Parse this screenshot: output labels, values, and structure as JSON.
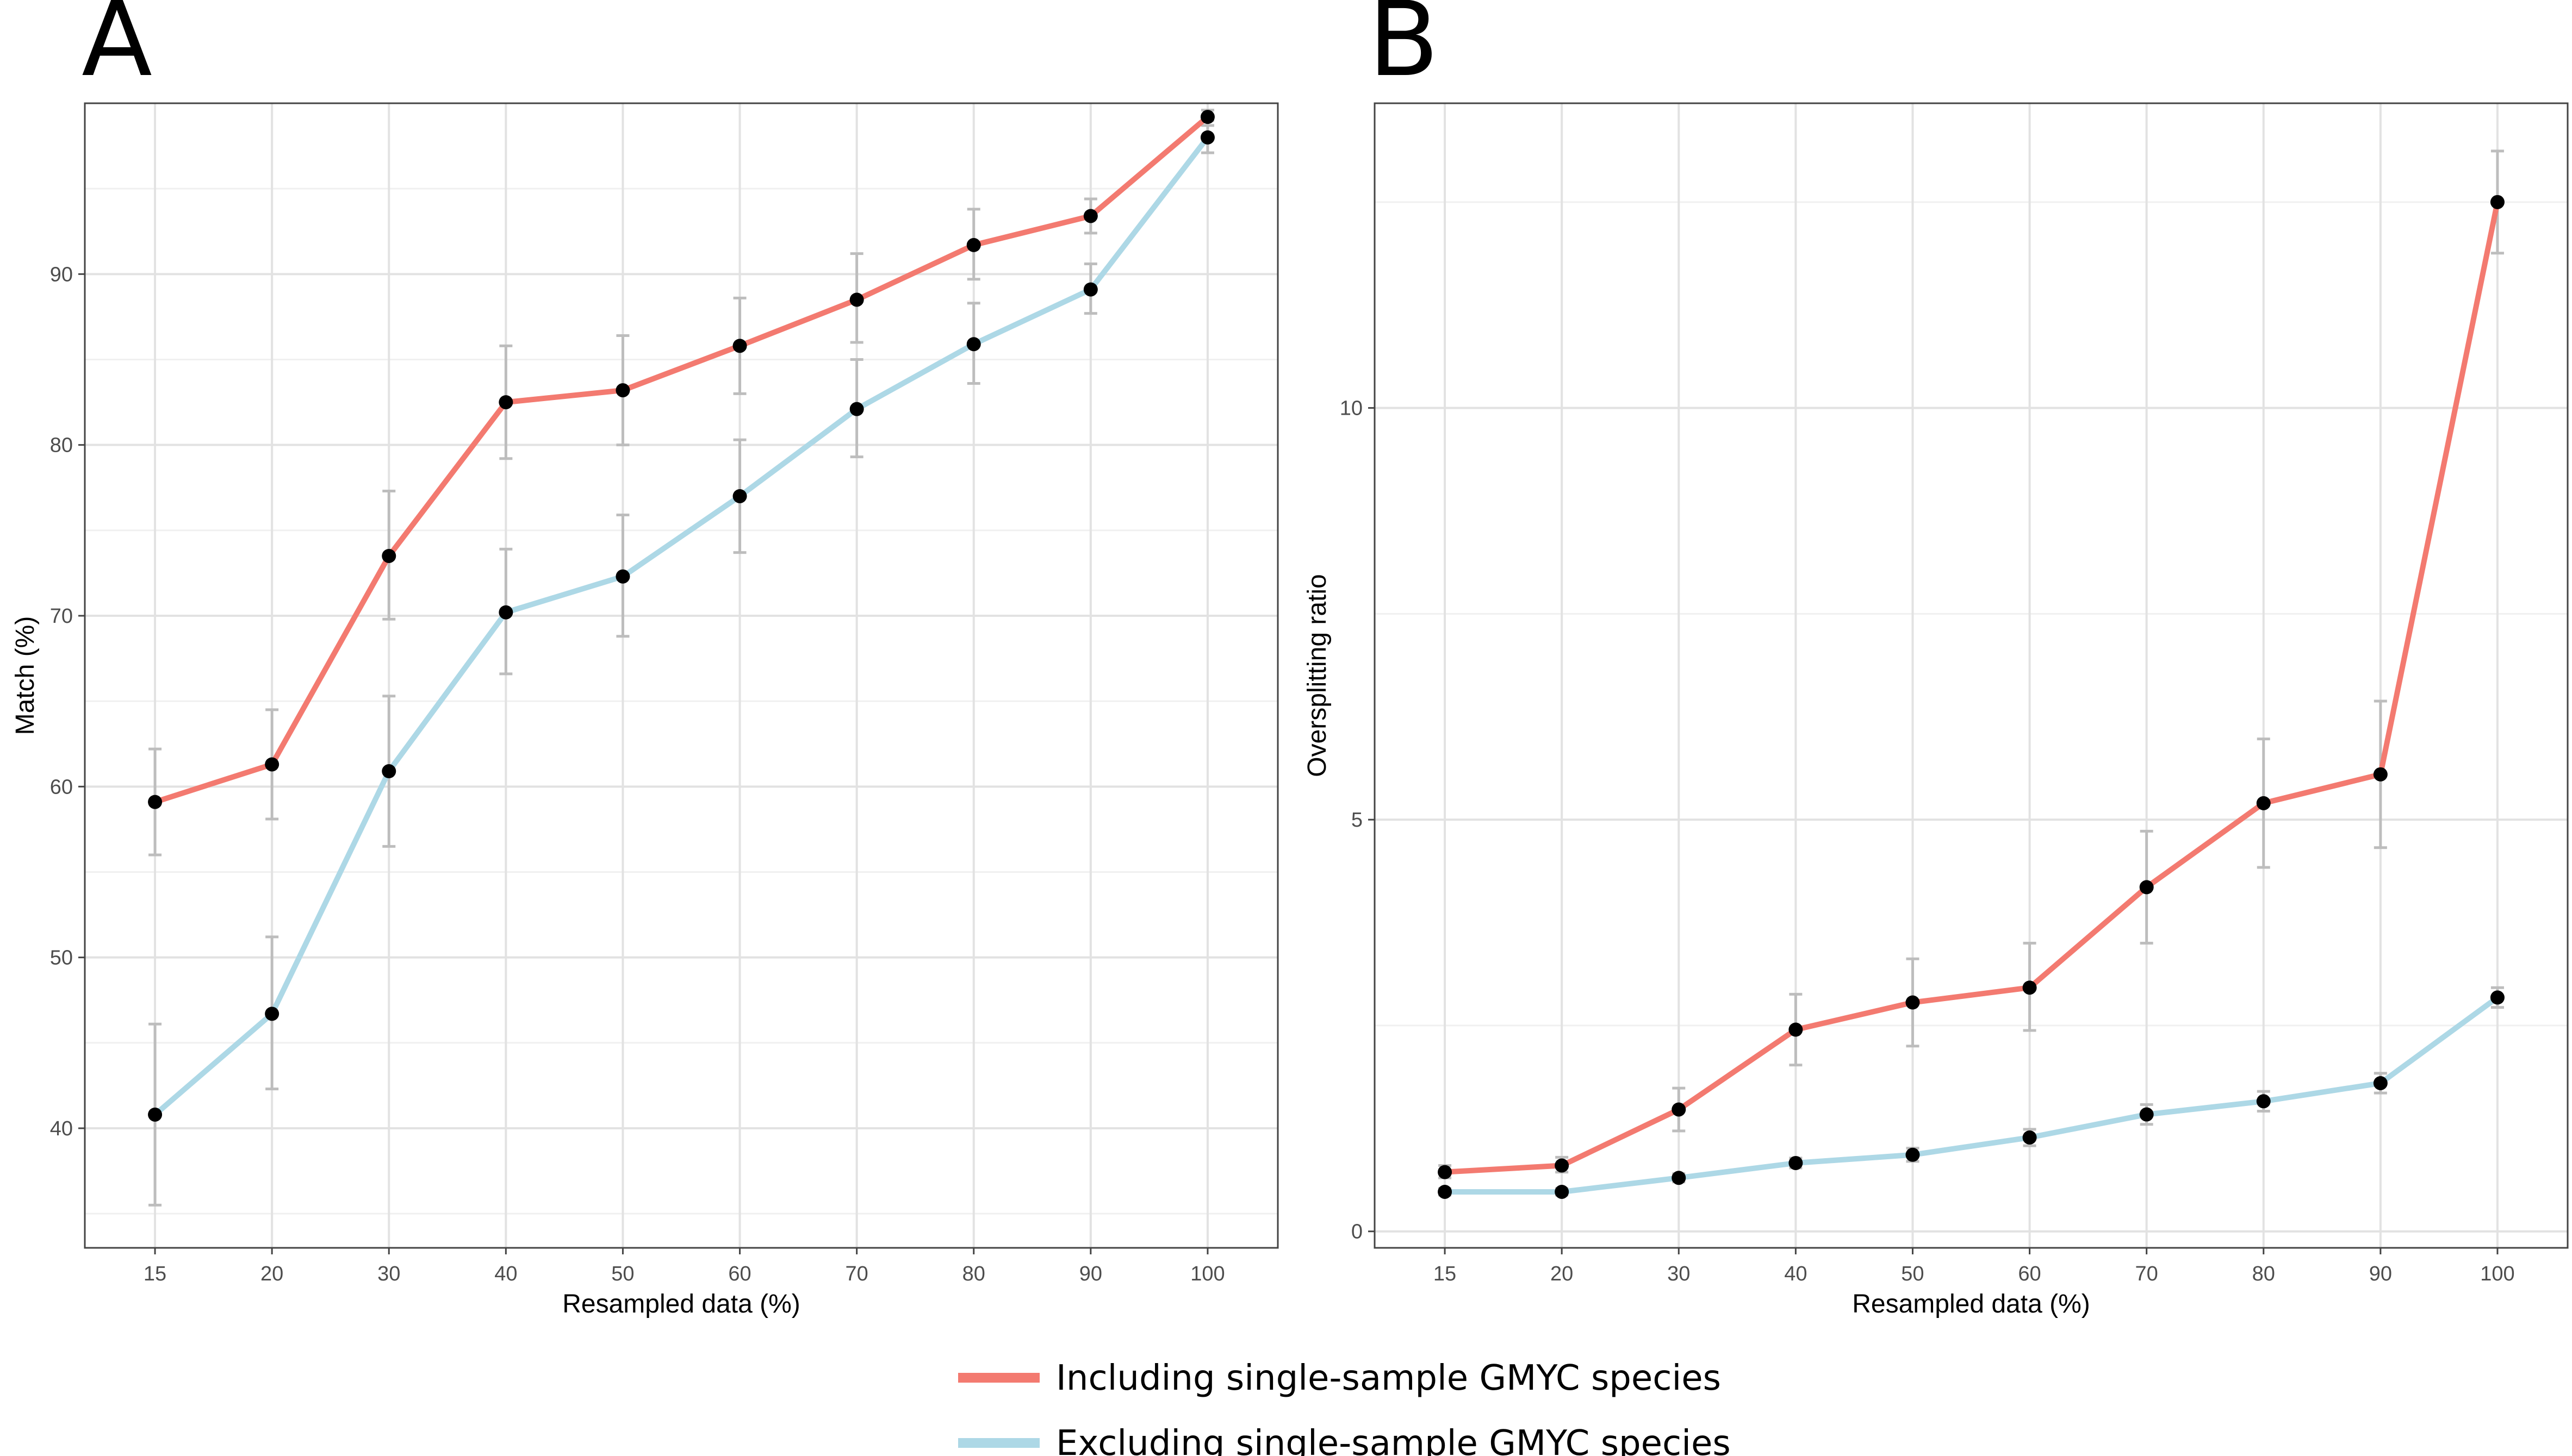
{
  "legend": [
    {
      "label": "Including single-sample GMYC species",
      "color": "#F37A70"
    },
    {
      "label": "Excluding single-sample GMYC species",
      "color": "#ADD8E6"
    }
  ],
  "chart_data": [
    {
      "panel": "A",
      "type": "line",
      "xlabel": "Resampled data (%)",
      "ylabel": "Match (%)",
      "categories": [
        "15",
        "20",
        "30",
        "40",
        "50",
        "60",
        "70",
        "80",
        "90",
        "100"
      ],
      "ylim": [
        33,
        100
      ],
      "yticks": [
        40,
        50,
        60,
        70,
        80,
        90
      ],
      "grid": true,
      "series": [
        {
          "name": "Including single-sample GMYC species",
          "color": "#F37A70",
          "values": [
            59.1,
            61.3,
            73.5,
            82.5,
            83.2,
            85.8,
            88.5,
            91.7,
            93.4,
            99.2
          ],
          "err_low": [
            56.0,
            58.1,
            69.8,
            79.2,
            80.0,
            83.0,
            86.0,
            89.7,
            92.4,
            98.7
          ],
          "err_high": [
            62.2,
            64.5,
            77.3,
            85.8,
            86.4,
            88.6,
            91.2,
            93.8,
            94.4,
            99.6
          ]
        },
        {
          "name": "Excluding single-sample GMYC species",
          "color": "#ADD8E6",
          "values": [
            40.8,
            46.7,
            60.9,
            70.2,
            72.3,
            77.0,
            82.1,
            85.9,
            89.1,
            98.0
          ],
          "err_low": [
            35.5,
            42.3,
            56.5,
            66.6,
            68.8,
            73.7,
            79.3,
            83.6,
            87.7,
            97.1
          ],
          "err_high": [
            46.1,
            51.2,
            65.3,
            73.9,
            75.9,
            80.3,
            85.0,
            88.3,
            90.6,
            99.0
          ]
        }
      ]
    },
    {
      "panel": "B",
      "type": "line",
      "xlabel": "Resampled data (%)",
      "ylabel": "Oversplitting ratio",
      "categories": [
        "15",
        "20",
        "30",
        "40",
        "50",
        "60",
        "70",
        "80",
        "90",
        "100"
      ],
      "ylim": [
        -0.2,
        13.7
      ],
      "yticks": [
        0,
        5,
        10
      ],
      "grid": true,
      "series": [
        {
          "name": "Including single-sample GMYC species",
          "color": "#F37A70",
          "values": [
            0.72,
            0.8,
            1.48,
            2.45,
            2.78,
            2.96,
            4.18,
            5.2,
            5.55,
            12.5
          ],
          "err_low": [
            0.65,
            0.72,
            1.22,
            2.02,
            2.25,
            2.44,
            3.5,
            4.42,
            4.66,
            11.88
          ],
          "err_high": [
            0.8,
            0.9,
            1.74,
            2.88,
            3.31,
            3.5,
            4.86,
            5.98,
            6.44,
            13.12
          ]
        },
        {
          "name": "Excluding single-sample GMYC species",
          "color": "#ADD8E6",
          "values": [
            0.48,
            0.48,
            0.65,
            0.83,
            0.93,
            1.14,
            1.42,
            1.58,
            1.8,
            2.84
          ],
          "err_low": [
            0.44,
            0.44,
            0.6,
            0.77,
            0.85,
            1.04,
            1.3,
            1.46,
            1.68,
            2.72
          ],
          "err_high": [
            0.52,
            0.52,
            0.7,
            0.89,
            1.01,
            1.24,
            1.54,
            1.7,
            1.92,
            2.96
          ]
        }
      ]
    }
  ]
}
